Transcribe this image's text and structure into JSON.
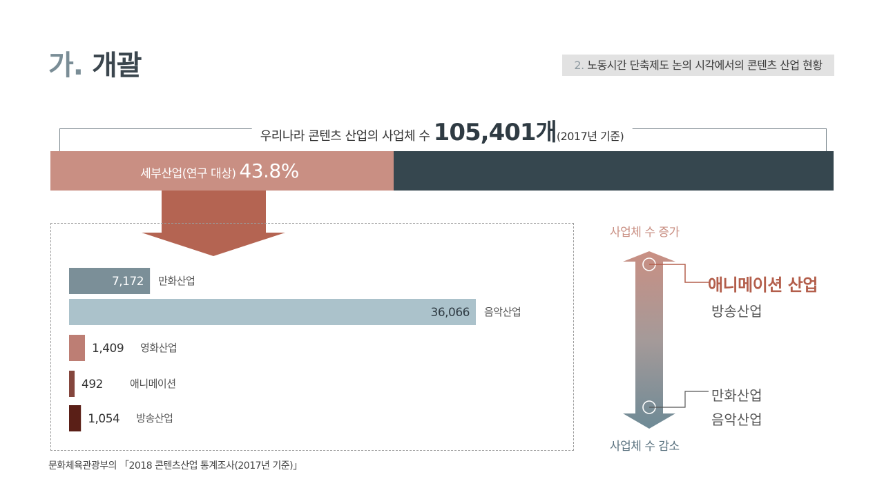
{
  "header": {
    "title_prefix": "가.",
    "title_main": "개괄",
    "section_num": "2.",
    "section_text": "노동시간 단축제도 논의 시각에서의 콘텐츠 산업 현황"
  },
  "total": {
    "lead": "우리나라 콘텐츠 산업의 사업체 수 ",
    "count": "105,401개",
    "basis": "(2017년 기준)",
    "segment_label": "세부산업(연구 대상) ",
    "segment_percent": "43.8%",
    "segment_share": 0.438,
    "colors": {
      "segment": "#c98f83",
      "rest": "#36474f"
    }
  },
  "chart_data": {
    "type": "bar",
    "orientation": "horizontal",
    "categories": [
      "만화산업",
      "음악산업",
      "영화산업",
      "애니메이션",
      "방송산업"
    ],
    "values": [
      7172,
      36066,
      1409,
      492,
      1054
    ],
    "value_labels": [
      "7,172",
      "36,066",
      "1,409",
      "492",
      "1,054"
    ],
    "colors": [
      "#7b8f98",
      "#abc2cb",
      "#bd7e74",
      "#84463d",
      "#5a1f17"
    ],
    "xlim": [
      0,
      36066
    ],
    "title": "",
    "xlabel": "",
    "ylabel": ""
  },
  "source": "문화체육관광부의 「2018 콘텐츠산업 통계조사(2017년 기준)」",
  "side": {
    "up_label": "사업체 수 증가",
    "down_label": "사업체 수 감소",
    "increase_main": "애니메이션 산업",
    "increase_sub": "방송산업",
    "decrease_1": "만화산업",
    "decrease_2": "음악산업"
  }
}
